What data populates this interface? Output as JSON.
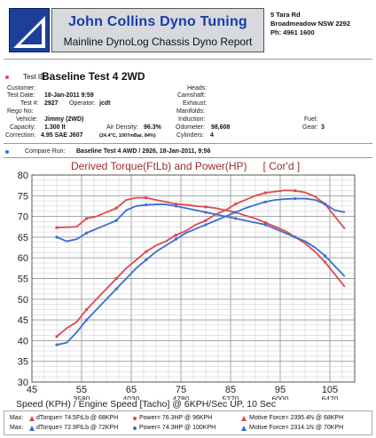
{
  "header": {
    "title": "John Collins Dyno Tuning",
    "subtitle": "Mainline DynoLog Chassis Dyno Report",
    "address": [
      "5 Tara Rd",
      "Broadmeadow NSW 2292",
      "Ph: 4961 1600"
    ]
  },
  "test": {
    "id_label": "Test ID:",
    "id_value": "Baseline Test 4 2WD",
    "customer_label": "Customer:",
    "date_label": "Test Date:",
    "date_value": "18-Jan-2011 9:59",
    "num_label": "Test #:",
    "num_value": "2927",
    "operator_label": "Operator:",
    "operator_value": "jcdt",
    "rego_label": "Rego No:",
    "vehicle_label": "Vehicle:",
    "vehicle_value": "Jimmy (2WD)",
    "capacity_label": "Capacity:",
    "capacity_value": "1.300 lt",
    "air_label": "Air Density:",
    "air_value": "96.3%",
    "correction_label": "Correction:",
    "correction_value": "4.95 SAE J607",
    "correction_note": "(24.4°C, 1007mBar, 84%)",
    "heads_label": "Heads:",
    "camshaft_label": "Camshaft:",
    "exhaust_label": "Exhaust:",
    "manifolds_label": "Manifolds:",
    "induction_label": "Induction:",
    "odometer_label": "Odometer:",
    "odometer_value": "98,608",
    "cylinders_label": "Cylinders:",
    "cylinders_value": "4",
    "fuel_label": "Fuel:",
    "gear_label": "Gear:",
    "gear_value": "3"
  },
  "compare": {
    "label": "Compare Run:",
    "value": "Baseline Test 4 AWD / 2926,  18-Jan-2011,    9:56"
  },
  "chart_title": {
    "main": "Derived Torque(FtLb) and Power(HP)",
    "cord": "[ Cor'd ]"
  },
  "footer": {
    "max_label": "Max:",
    "row1": {
      "torque": "dTorque= 74.5FtLb @ 68KPH",
      "power": "Power= 76.3HP @ 96KPH",
      "force": "Motive Force= 2395.4N @ 68KPH"
    },
    "row2": {
      "torque": "dTorque= 72.9FtLb @ 72KPH",
      "power": "Power= 74.3HP @ 100KPH",
      "force": "Motive Force= 2314.1N @ 70KPH"
    }
  },
  "colors": {
    "red": "#e0474d",
    "blue": "#3a6fd0",
    "grid": "#c9c9c9",
    "brand": "#1c3f9a"
  },
  "chart_data": {
    "type": "line",
    "title": "Derived Torque(FtLb) and Power(HP)",
    "xlabel": "Speed (KPH) / Engine Speed [Tacho] @ 6KPH/Sec UP, 10 Sec",
    "xlim": [
      45,
      110
    ],
    "ylim": [
      30,
      80
    ],
    "x_ticks": [
      45,
      55,
      65,
      75,
      85,
      95,
      105
    ],
    "x_rpm_ticks": [
      "",
      "3580",
      "4030",
      "4780",
      "5270",
      "6000",
      "6470"
    ],
    "y_ticks": [
      30,
      35,
      40,
      45,
      50,
      55,
      60,
      65,
      70,
      75,
      80
    ],
    "grid": true,
    "series": [
      {
        "name": "dTorque (Test 2927)",
        "color": "red",
        "marker": "square",
        "x": [
          50,
          52,
          54,
          56,
          58,
          60,
          62,
          64,
          66,
          68,
          70,
          72,
          74,
          76,
          78,
          80,
          82,
          84,
          86,
          88,
          90,
          92,
          94,
          96,
          98,
          100,
          102,
          104,
          106,
          108
        ],
        "y": [
          67.3,
          67.4,
          67.5,
          69.5,
          70.0,
          71.0,
          72.0,
          74.0,
          74.5,
          74.5,
          74.0,
          73.5,
          73.0,
          72.8,
          72.5,
          72.3,
          72.0,
          71.5,
          71.0,
          70.2,
          69.5,
          68.5,
          67.5,
          66.5,
          65.0,
          63.5,
          61.5,
          59.0,
          56.0,
          53.0
        ]
      },
      {
        "name": "Power (Test 2927)",
        "color": "red",
        "marker": "square",
        "x": [
          50,
          52,
          54,
          56,
          58,
          60,
          62,
          64,
          66,
          68,
          70,
          72,
          74,
          76,
          78,
          80,
          82,
          84,
          86,
          88,
          90,
          92,
          94,
          96,
          98,
          100,
          102,
          104,
          106,
          108
        ],
        "y": [
          41.0,
          43.0,
          44.5,
          47.5,
          50.0,
          52.5,
          55.0,
          57.5,
          59.5,
          61.5,
          63.0,
          64.0,
          65.5,
          66.5,
          68.0,
          69.0,
          70.5,
          71.5,
          73.0,
          74.0,
          75.0,
          75.7,
          76.0,
          76.3,
          76.2,
          75.8,
          74.8,
          73.0,
          70.0,
          67.0
        ]
      },
      {
        "name": "dTorque (Compare 2926)",
        "color": "blue",
        "marker": "circle",
        "x": [
          50,
          52,
          54,
          56,
          58,
          60,
          62,
          64,
          66,
          68,
          70,
          72,
          74,
          76,
          78,
          80,
          82,
          84,
          86,
          88,
          90,
          92,
          94,
          96,
          98,
          100,
          102,
          104,
          106,
          108
        ],
        "y": [
          65.0,
          64.0,
          64.5,
          66.0,
          67.0,
          68.0,
          69.0,
          71.5,
          72.5,
          72.8,
          72.9,
          72.9,
          72.5,
          72.0,
          71.5,
          71.0,
          70.5,
          70.0,
          69.5,
          69.0,
          68.5,
          68.0,
          67.0,
          66.0,
          65.0,
          64.0,
          62.5,
          60.5,
          58.0,
          55.5
        ]
      },
      {
        "name": "Power (Compare 2926)",
        "color": "blue",
        "marker": "circle",
        "x": [
          50,
          52,
          54,
          56,
          58,
          60,
          62,
          64,
          66,
          68,
          70,
          72,
          74,
          76,
          78,
          80,
          82,
          84,
          86,
          88,
          90,
          92,
          94,
          96,
          98,
          100,
          102,
          104,
          106,
          108
        ],
        "y": [
          39.0,
          39.5,
          42.0,
          45.0,
          47.5,
          50.0,
          52.5,
          55.0,
          57.5,
          59.5,
          61.5,
          63.0,
          64.5,
          66.0,
          67.0,
          68.0,
          69.0,
          70.0,
          71.0,
          72.0,
          72.8,
          73.5,
          74.0,
          74.2,
          74.3,
          74.3,
          74.0,
          73.0,
          71.5,
          71.0
        ]
      }
    ]
  }
}
